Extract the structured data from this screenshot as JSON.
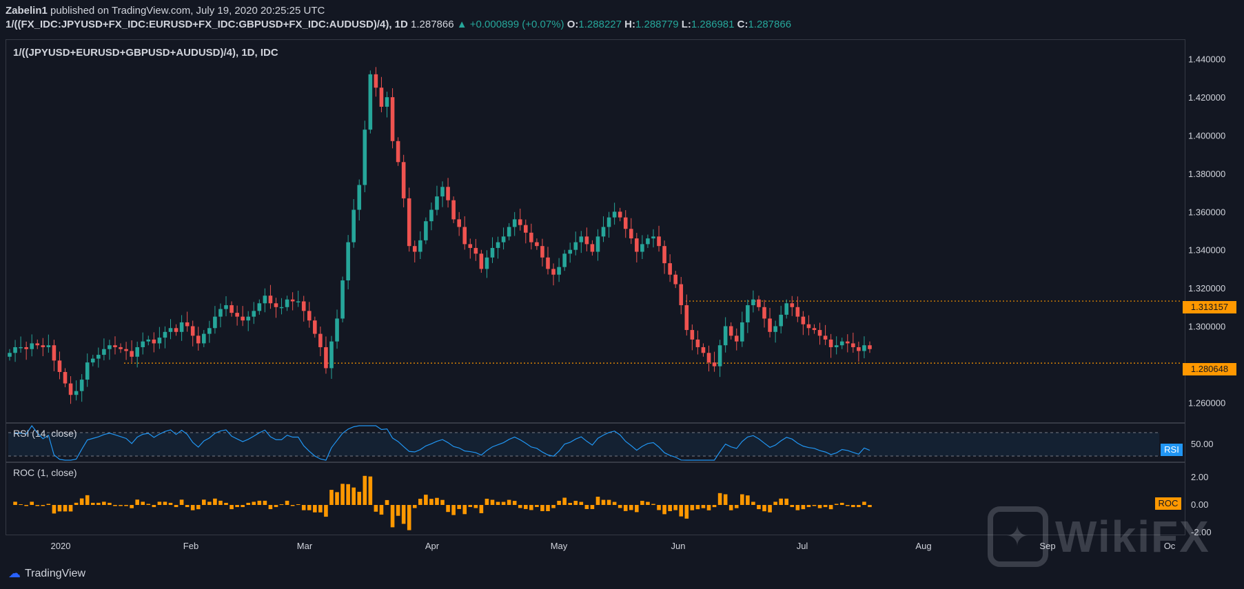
{
  "header": {
    "publisher": "Zabelin1",
    "published_text": "published on TradingView.com, July 19, 2020 20:25:25 UTC",
    "symbol": "1/((FX_IDC:JPYUSD+FX_IDC:EURUSD+FX_IDC:GBPUSD+FX_IDC:AUDUSD)/4), 1D",
    "last": "1.287866",
    "change": "▲ +0.000899 (+0.07%)",
    "o_label": "O:",
    "o": "1.288227",
    "h_label": "H:",
    "h": "1.288779",
    "l_label": "L:",
    "l": "1.286981",
    "c_label": "C:",
    "c": "1.287866"
  },
  "main_label": "1/((JPYUSD+EURUSD+GBPUSD+AUDUSD)/4), 1D, IDC",
  "rsi_label": "RSI (14, close)",
  "roc_label": "ROC (1, close)",
  "rsi_tag": "RSI",
  "roc_tag": "ROC",
  "resistance_tag": "1.313157",
  "support_tag": "1.280648",
  "footer_brand": "TradingView",
  "watermark": "WikiFX",
  "colors": {
    "bg": "#131722",
    "up": "#26a69a",
    "down": "#ef5350",
    "level": "#ff9800",
    "rsi": "#2196f3",
    "roc": "#ff9800"
  },
  "chart_data": {
    "type": "candlestick",
    "title": "1/((JPYUSD+EURUSD+GBPUSD+AUDUSD)/4), 1D, IDC",
    "x_labels": [
      "2020",
      "Feb",
      "Mar",
      "Apr",
      "May",
      "Jun",
      "Jul",
      "Aug",
      "Sep",
      "Oc"
    ],
    "y_ticks": [
      "1.440000",
      "1.420000",
      "1.400000",
      "1.380000",
      "1.360000",
      "1.340000",
      "1.320000",
      "1.300000",
      "1.260000"
    ],
    "ylim": [
      1.25,
      1.45
    ],
    "levels": [
      1.313157,
      1.280648
    ],
    "closes": [
      1.286,
      1.289,
      1.289,
      1.288,
      1.291,
      1.29,
      1.289,
      1.29,
      1.282,
      1.276,
      1.27,
      1.264,
      1.266,
      1.272,
      1.281,
      1.283,
      1.285,
      1.288,
      1.29,
      1.289,
      1.288,
      1.287,
      1.284,
      1.289,
      1.292,
      1.293,
      1.291,
      1.294,
      1.297,
      1.299,
      1.297,
      1.302,
      1.3,
      1.295,
      1.291,
      1.296,
      1.299,
      1.305,
      1.309,
      1.311,
      1.307,
      1.305,
      1.303,
      1.305,
      1.308,
      1.312,
      1.316,
      1.312,
      1.31,
      1.31,
      1.314,
      1.313,
      1.313,
      1.308,
      1.303,
      1.296,
      1.289,
      1.278,
      1.292,
      1.304,
      1.324,
      1.344,
      1.361,
      1.374,
      1.403,
      1.432,
      1.425,
      1.415,
      1.42,
      1.397,
      1.386,
      1.367,
      1.342,
      1.339,
      1.345,
      1.355,
      1.361,
      1.368,
      1.373,
      1.366,
      1.356,
      1.352,
      1.343,
      1.341,
      1.338,
      1.33,
      1.336,
      1.341,
      1.344,
      1.347,
      1.352,
      1.356,
      1.353,
      1.349,
      1.344,
      1.342,
      1.336,
      1.33,
      1.327,
      1.331,
      1.338,
      1.34,
      1.344,
      1.347,
      1.343,
      1.339,
      1.347,
      1.352,
      1.357,
      1.36,
      1.357,
      1.351,
      1.346,
      1.339,
      1.343,
      1.346,
      1.347,
      1.342,
      1.333,
      1.327,
      1.322,
      1.311,
      1.298,
      1.293,
      1.289,
      1.286,
      1.281,
      1.279,
      1.29,
      1.3,
      1.295,
      1.292,
      1.302,
      1.311,
      1.314,
      1.31,
      1.304,
      1.297,
      1.3,
      1.306,
      1.312,
      1.31,
      1.305,
      1.301,
      1.299,
      1.298,
      1.295,
      1.293,
      1.289,
      1.29,
      1.292,
      1.291,
      1.289,
      1.287,
      1.29,
      1.288
    ],
    "rsi": {
      "label": "RSI (14, close)",
      "ticks": [
        "50.00"
      ],
      "bounds": [
        70,
        30
      ]
    },
    "roc": {
      "label": "ROC (1, close)",
      "ticks": [
        "2.00",
        "0.00",
        "-2.00"
      ]
    }
  }
}
